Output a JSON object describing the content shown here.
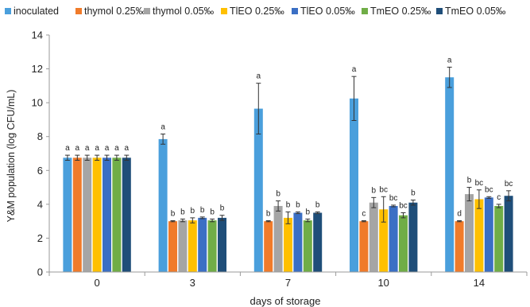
{
  "chart_data": {
    "type": "bar",
    "title": "",
    "xlabel": "days of storage",
    "ylabel": "Y&M population (log CFU/mL)",
    "categories": [
      "0",
      "3",
      "7",
      "10",
      "14"
    ],
    "ylim": [
      0,
      14
    ],
    "yticks": [
      0,
      2,
      4,
      6,
      8,
      10,
      12,
      14
    ],
    "grid": false,
    "legend_position": "top",
    "series": [
      {
        "name": "inoculated",
        "color": "#4a9fdc",
        "values": [
          6.75,
          7.85,
          9.65,
          10.25,
          11.5
        ],
        "errors": [
          0.15,
          0.3,
          1.5,
          1.3,
          0.6
        ],
        "labels": [
          "a",
          "a",
          "a",
          "a",
          "a"
        ]
      },
      {
        "name": "thymol 0.25‰",
        "color": "#f07b2a",
        "values": [
          6.75,
          3.0,
          3.0,
          3.0,
          3.0
        ],
        "errors": [
          0.15,
          0.03,
          0.03,
          0.03,
          0.03
        ],
        "labels": [
          "a",
          "b",
          "b",
          "c",
          "d"
        ]
      },
      {
        "name": "thymol 0.05‰",
        "color": "#a5a5a5",
        "values": [
          6.75,
          3.05,
          3.9,
          4.1,
          4.6
        ],
        "errors": [
          0.15,
          0.08,
          0.3,
          0.3,
          0.4
        ],
        "labels": [
          "a",
          "b",
          "b",
          "b",
          "b"
        ]
      },
      {
        "name": "TlEO 0.25‰",
        "color": "#ffc000",
        "values": [
          6.75,
          3.05,
          3.2,
          3.7,
          4.3
        ],
        "errors": [
          0.15,
          0.15,
          0.35,
          0.75,
          0.55
        ],
        "labels": [
          "a",
          "b",
          "b",
          "bc",
          "bc"
        ]
      },
      {
        "name": "TlEO 0.05‰",
        "color": "#3b6fc4",
        "values": [
          6.75,
          3.2,
          3.5,
          3.9,
          4.4
        ],
        "errors": [
          0.15,
          0.05,
          0.05,
          0.05,
          0.05
        ],
        "labels": [
          "a",
          "b",
          "b",
          "bc",
          "bc"
        ]
      },
      {
        "name": "TmEO 0.25‰",
        "color": "#70ad47",
        "values": [
          6.75,
          3.05,
          3.05,
          3.35,
          3.9
        ],
        "errors": [
          0.15,
          0.08,
          0.08,
          0.15,
          0.1
        ],
        "labels": [
          "a",
          "b",
          "b",
          "bc",
          "c"
        ]
      },
      {
        "name": "TmEO 0.05‰",
        "color": "#1f4e79",
        "values": [
          6.75,
          3.2,
          3.5,
          4.1,
          4.5
        ],
        "errors": [
          0.15,
          0.15,
          0.05,
          0.15,
          0.3
        ],
        "labels": [
          "a",
          "b",
          "b",
          "b",
          "bc"
        ]
      }
    ]
  }
}
